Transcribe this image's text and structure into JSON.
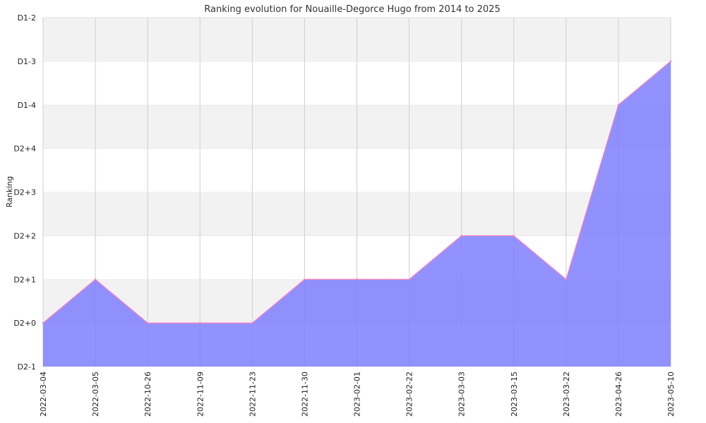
{
  "chart_data": {
    "type": "area",
    "title": "Ranking evolution for Nouaille-Degorce Hugo from 2014 to 2025",
    "xlabel": "",
    "ylabel": "Ranking",
    "y_levels": [
      "D2-1",
      "D2+0",
      "D2+1",
      "D2+2",
      "D2+3",
      "D2+4",
      "D1-4",
      "D1-3",
      "D1-2"
    ],
    "categories": [
      "2022-03-04",
      "2022-03-05",
      "2022-10-26",
      "2022-11-09",
      "2022-11-23",
      "2022-11-30",
      "2023-02-01",
      "2023-02-22",
      "2023-03-03",
      "2023-03-15",
      "2023-03-22",
      "2023-04-26",
      "2023-05-10"
    ],
    "series": [
      {
        "values": [
          "D2+0",
          "D2+1",
          "D2+0",
          "D2+0",
          "D2+0",
          "D2+1",
          "D2+1",
          "D2+1",
          "D2+2",
          "D2+2",
          "D2+1",
          "D1-4",
          "D1-3"
        ]
      }
    ],
    "grid": true,
    "colors": {
      "fill": "#7f7ffe",
      "line": "#ff7fbf",
      "band_alt": "#f2f2f2",
      "grid": "#cfcfcf"
    }
  }
}
